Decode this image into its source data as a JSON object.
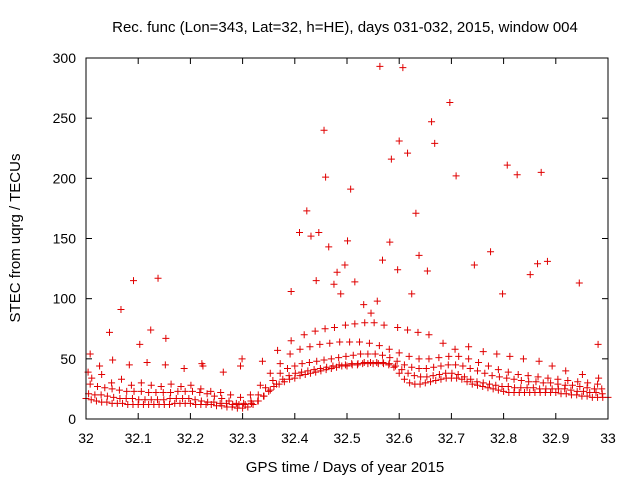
{
  "chart_data": {
    "type": "scatter",
    "title": "Rec. func (Lon=343, Lat=32, h=HE), days 031-032, 2015, window 004",
    "xlabel": "GPS time / Days of year 2015",
    "ylabel": "STEC from uqrg / TECUs",
    "xlim": [
      32,
      33
    ],
    "ylim": [
      0,
      300
    ],
    "xticks": [
      "32",
      "32.1",
      "32.2",
      "32.3",
      "32.4",
      "32.5",
      "32.6",
      "32.7",
      "32.8",
      "32.9",
      "33"
    ],
    "yticks": [
      "0",
      "50",
      "100",
      "150",
      "200",
      "250",
      "300"
    ],
    "grid": false,
    "legend": "none",
    "marker": "plus",
    "color": "#e00000",
    "series": [
      {
        "x": [
          32.0,
          32.01,
          32.02,
          32.03,
          32.04,
          32.05,
          32.06,
          32.07,
          32.08,
          32.09,
          32.1,
          32.11,
          32.12,
          32.13,
          32.14,
          32.15,
          32.16,
          32.17,
          32.18,
          32.19,
          32.2,
          32.21,
          32.22,
          32.23,
          32.24,
          32.25,
          32.26,
          32.27,
          32.28,
          32.29,
          32.3,
          32.31,
          32.32,
          32.33,
          32.34,
          32.35,
          32.36,
          32.37,
          32.38,
          32.39,
          32.4,
          32.41,
          32.42,
          32.43,
          32.44,
          32.45,
          32.46,
          32.47,
          32.48,
          32.49,
          32.5,
          32.51,
          32.52,
          32.53,
          32.54,
          32.55,
          32.56,
          32.57,
          32.58,
          32.59,
          32.6,
          32.61,
          32.62,
          32.63,
          32.64,
          32.65,
          32.66,
          32.67,
          32.68,
          32.69,
          32.7,
          32.71,
          32.72,
          32.73,
          32.74,
          32.75,
          32.76,
          32.77,
          32.78,
          32.79,
          32.8,
          32.81,
          32.82,
          32.83,
          32.84,
          32.85,
          32.86,
          32.87,
          32.88,
          32.89,
          32.9,
          32.91,
          32.92,
          32.93,
          32.94,
          32.95,
          32.96,
          32.97,
          32.98,
          32.99,
          33.0
        ],
        "y": [
          17,
          16,
          15,
          14,
          14,
          13,
          13,
          13,
          12,
          12,
          12,
          12,
          12,
          12,
          12,
          12,
          12,
          13,
          13,
          13,
          13,
          12,
          12,
          12,
          12,
          11,
          11,
          10,
          10,
          9,
          9,
          10,
          12,
          15,
          19,
          23,
          27,
          29,
          31,
          33,
          34,
          36,
          37,
          38,
          39,
          40,
          41,
          42,
          43,
          44,
          44,
          45,
          45,
          46,
          46,
          46,
          46,
          46,
          45,
          43,
          38,
          33,
          30,
          29,
          29,
          30,
          31,
          32,
          33,
          34,
          34,
          34,
          33,
          31,
          29,
          28,
          27,
          26,
          25,
          24,
          23,
          22,
          22,
          22,
          22,
          22,
          22,
          22,
          22,
          22,
          22,
          21,
          21,
          20,
          20,
          19,
          19,
          18,
          18,
          18,
          18
        ]
      },
      {
        "x": [
          32.005,
          32.017,
          32.029,
          32.041,
          32.053,
          32.065,
          32.077,
          32.089,
          32.101,
          32.113,
          32.125,
          32.137,
          32.149,
          32.161,
          32.173,
          32.185,
          32.197,
          32.209,
          32.221,
          32.233,
          32.245,
          32.257,
          32.269,
          32.281,
          32.293,
          32.305,
          32.317,
          32.329,
          32.341,
          32.353,
          32.365,
          32.377,
          32.389,
          32.401,
          32.413,
          32.425,
          32.437,
          32.449,
          32.461,
          32.473,
          32.485,
          32.497,
          32.509,
          32.521,
          32.533,
          32.545,
          32.557,
          32.569,
          32.581,
          32.593,
          32.605,
          32.617,
          32.629,
          32.641,
          32.653,
          32.665,
          32.677,
          32.689,
          32.701,
          32.713,
          32.725,
          32.737,
          32.749,
          32.761,
          32.773,
          32.785,
          32.797,
          32.809,
          32.821,
          32.833,
          32.845,
          32.857,
          32.869,
          32.881,
          32.893,
          32.905,
          32.917,
          32.929,
          32.941,
          32.953,
          32.965,
          32.977,
          32.989
        ],
        "y": [
          21,
          20,
          20,
          19,
          18,
          17,
          17,
          17,
          16,
          16,
          16,
          16,
          16,
          17,
          17,
          17,
          17,
          16,
          15,
          14,
          14,
          13,
          13,
          12,
          12,
          12,
          13,
          15,
          19,
          24,
          29,
          33,
          36,
          38,
          39,
          40,
          41,
          42,
          43,
          44,
          45,
          45,
          46,
          46,
          47,
          47,
          47,
          47,
          46,
          44,
          41,
          38,
          36,
          35,
          35,
          36,
          37,
          38,
          38,
          37,
          35,
          33,
          31,
          30,
          29,
          28,
          27,
          27,
          26,
          26,
          26,
          26,
          25,
          25,
          25,
          25,
          25,
          24,
          23,
          23,
          22,
          22,
          21
        ]
      },
      {
        "x": [
          32.008,
          32.022,
          32.036,
          32.05,
          32.064,
          32.078,
          32.092,
          32.106,
          32.12,
          32.134,
          32.148,
          32.162,
          32.176,
          32.19,
          32.204,
          32.218,
          32.232,
          32.246,
          32.26,
          32.274,
          32.288,
          32.302,
          32.316,
          32.33,
          32.344,
          32.358,
          32.372,
          32.386,
          32.4,
          32.414,
          32.428,
          32.442,
          32.456,
          32.47,
          32.484,
          32.498,
          32.512,
          32.526,
          32.54,
          32.554,
          32.568,
          32.582,
          32.596,
          32.61,
          32.624,
          32.638,
          32.652,
          32.666,
          32.68,
          32.694,
          32.708,
          32.722,
          32.736,
          32.75,
          32.764,
          32.778,
          32.792,
          32.806,
          32.82,
          32.834,
          32.848,
          32.862,
          32.876,
          32.89,
          32.904,
          32.918,
          32.932,
          32.946,
          32.96,
          32.974,
          32.988
        ],
        "y": [
          29,
          27,
          26,
          25,
          24,
          23,
          23,
          23,
          22,
          22,
          22,
          22,
          23,
          23,
          23,
          22,
          21,
          19,
          17,
          15,
          13,
          13,
          15,
          20,
          26,
          32,
          38,
          42,
          44,
          46,
          47,
          48,
          49,
          50,
          51,
          52,
          53,
          54,
          54,
          54,
          53,
          51,
          48,
          45,
          43,
          42,
          42,
          43,
          44,
          45,
          45,
          44,
          42,
          40,
          38,
          36,
          35,
          34,
          33,
          32,
          31,
          31,
          30,
          30,
          29,
          28,
          28,
          27,
          26,
          25,
          25
        ]
      },
      {
        "x": [
          32.011,
          32.03,
          32.049,
          32.068,
          32.087,
          32.106,
          32.125,
          32.144,
          32.163,
          32.182,
          32.201,
          32.22,
          32.239,
          32.258,
          32.277,
          32.296,
          32.315,
          32.334,
          32.353,
          32.372,
          32.391,
          32.41,
          32.429,
          32.448,
          32.467,
          32.486,
          32.505,
          32.524,
          32.543,
          32.562,
          32.581,
          32.6,
          32.619,
          32.638,
          32.657,
          32.676,
          32.695,
          32.714,
          32.733,
          32.752,
          32.771,
          32.79,
          32.809,
          32.828,
          32.847,
          32.866,
          32.885,
          32.904,
          32.923,
          32.942,
          32.961,
          32.98
        ],
        "y": [
          34,
          37,
          30,
          33,
          28,
          30,
          28,
          27,
          29,
          27,
          28,
          25,
          23,
          22,
          20,
          18,
          20,
          28,
          38,
          46,
          54,
          58,
          60,
          62,
          63,
          64,
          64,
          64,
          63,
          61,
          58,
          55,
          52,
          50,
          50,
          51,
          52,
          52,
          50,
          47,
          44,
          41,
          39,
          37,
          36,
          35,
          34,
          33,
          32,
          31,
          30,
          29
        ]
      },
      {
        "x": [
          32.004,
          32.026,
          32.051,
          32.083,
          32.117,
          32.152,
          32.188,
          32.224,
          32.263,
          32.296,
          32.338,
          32.367,
          32.393,
          32.418,
          32.439,
          32.458,
          32.476,
          32.497,
          32.515,
          32.534,
          32.552,
          32.571,
          32.597,
          32.616,
          32.636,
          32.657,
          32.684,
          32.707,
          32.733,
          32.761,
          32.787,
          32.812,
          32.838,
          32.868,
          32.893,
          32.919,
          32.951,
          32.982
        ],
        "y": [
          39,
          44,
          49,
          45,
          47,
          45,
          42,
          44,
          39,
          44,
          48,
          57,
          65,
          70,
          73,
          75,
          76,
          78,
          79,
          80,
          80,
          78,
          76,
          74,
          72,
          70,
          63,
          58,
          60,
          56,
          54,
          52,
          50,
          48,
          44,
          40,
          37,
          34
        ]
      },
      {
        "x": [
          32.008,
          32.045,
          32.067,
          32.091,
          32.103,
          32.124,
          32.138,
          32.153,
          32.222,
          32.299,
          32.393,
          32.409,
          32.423,
          32.431,
          32.441,
          32.446,
          32.456,
          32.459,
          32.465,
          32.475,
          32.481,
          32.488,
          32.496,
          32.501,
          32.507,
          32.515,
          32.532,
          32.546,
          32.558,
          32.563,
          32.568,
          32.582,
          32.585,
          32.597,
          32.6,
          32.607,
          32.616,
          32.624,
          32.632,
          32.638,
          32.654,
          32.662,
          32.668,
          32.697,
          32.709,
          32.744,
          32.775,
          32.798,
          32.807,
          32.826,
          32.851,
          32.865,
          32.872,
          32.884,
          32.945,
          32.981
        ],
        "y": [
          54,
          72,
          91,
          115,
          62,
          74,
          117,
          67,
          46,
          50,
          106,
          155,
          173,
          152,
          115,
          155,
          240,
          201,
          143,
          112,
          122,
          104,
          128,
          148,
          191,
          114,
          95,
          88,
          98,
          293,
          132,
          147,
          216,
          124,
          231,
          292,
          221,
          104,
          171,
          136,
          123,
          247,
          229,
          263,
          202,
          128,
          139,
          104,
          211,
          203,
          120,
          129,
          205,
          131,
          113,
          62
        ]
      }
    ]
  }
}
